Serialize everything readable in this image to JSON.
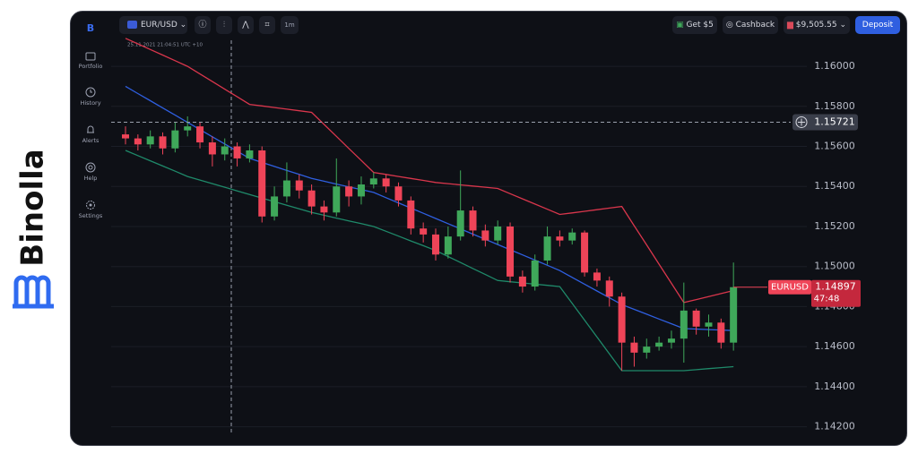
{
  "brand": "Binolla",
  "header": {
    "symbol": "EUR/USD",
    "timeframe": "1m",
    "bonus": "Get $5",
    "cashback": "Cashback",
    "balance": "$9,505.55",
    "deposit": "Deposit"
  },
  "sidebar": [
    "Portfolio",
    "History",
    "Alerts",
    "Help",
    "Settings"
  ],
  "chart_data": {
    "type": "candlestick",
    "symbol": "EURUSD",
    "timestamp": "25.11.2021 21:04:51 UTC +10",
    "countdown": "47:48",
    "open": [
      1.1566,
      1.1564,
      1.1561,
      1.1565,
      1.1559,
      1.1568,
      1.157,
      1.1562,
      1.1556,
      1.156,
      1.1554,
      1.1558,
      1.1525,
      1.1535,
      1.1543,
      1.1538,
      1.153,
      1.1527,
      1.154,
      1.1535,
      1.1541,
      1.1544,
      1.154,
      1.1533,
      1.1519,
      1.1516,
      1.1506,
      1.1515,
      1.1528,
      1.1518,
      1.1513,
      1.152,
      1.1495,
      1.149,
      1.1503,
      1.1515,
      1.1513,
      1.1517,
      1.1497,
      1.1493,
      1.1485,
      1.1462,
      1.1457,
      1.146,
      1.1462,
      1.1464,
      1.1478,
      1.147,
      1.1472,
      1.1462
    ],
    "high": [
      1.157,
      1.1566,
      1.1568,
      1.1567,
      1.1572,
      1.1575,
      1.1572,
      1.1565,
      1.1564,
      1.1562,
      1.1561,
      1.156,
      1.154,
      1.1552,
      1.1546,
      1.1541,
      1.1533,
      1.1554,
      1.1543,
      1.1545,
      1.1547,
      1.1546,
      1.1542,
      1.1535,
      1.1522,
      1.1519,
      1.152,
      1.1548,
      1.153,
      1.1521,
      1.1523,
      1.1522,
      1.1498,
      1.1506,
      1.152,
      1.1518,
      1.1519,
      1.1518,
      1.1499,
      1.1495,
      1.1487,
      1.1465,
      1.1464,
      1.1465,
      1.1468,
      1.1492,
      1.1479,
      1.1476,
      1.1474,
      1.1502
    ],
    "low": [
      1.1561,
      1.1558,
      1.1559,
      1.1556,
      1.1557,
      1.1565,
      1.1559,
      1.155,
      1.1553,
      1.155,
      1.1552,
      1.1522,
      1.1523,
      1.1532,
      1.1534,
      1.1526,
      1.1523,
      1.1525,
      1.153,
      1.1531,
      1.1539,
      1.1537,
      1.153,
      1.1516,
      1.1512,
      1.1503,
      1.1504,
      1.1513,
      1.1515,
      1.151,
      1.1511,
      1.1492,
      1.1487,
      1.1488,
      1.1501,
      1.151,
      1.1511,
      1.1495,
      1.149,
      1.148,
      1.1448,
      1.145,
      1.1454,
      1.1458,
      1.1459,
      1.1452,
      1.1466,
      1.1465,
      1.1459,
      1.1458
    ],
    "close": [
      1.1564,
      1.1561,
      1.1565,
      1.1559,
      1.1568,
      1.157,
      1.1562,
      1.1556,
      1.156,
      1.1554,
      1.1558,
      1.1525,
      1.1535,
      1.1543,
      1.1538,
      1.153,
      1.1527,
      1.154,
      1.1535,
      1.1541,
      1.1544,
      1.154,
      1.1533,
      1.1519,
      1.1516,
      1.1506,
      1.1515,
      1.1528,
      1.1518,
      1.1513,
      1.152,
      1.1495,
      1.149,
      1.1503,
      1.1515,
      1.1513,
      1.1517,
      1.1497,
      1.1493,
      1.1485,
      1.1462,
      1.1457,
      1.146,
      1.1462,
      1.1464,
      1.1478,
      1.147,
      1.1472,
      1.1462,
      1.14897
    ],
    "up_color": "#3fa85a",
    "down_color": "#ef4458",
    "overlays": [
      {
        "color": "#d9364c",
        "values": [
          1.1614,
          1.16112,
          1.16084,
          1.16056,
          1.16028,
          1.16,
          1.15962,
          1.15924,
          1.15886,
          1.15848,
          1.1581,
          1.15802,
          1.15794,
          1.15786,
          1.15778,
          1.1577,
          1.1571,
          1.1565,
          1.1559,
          1.1553,
          1.1547,
          1.1546,
          1.1545,
          1.1544,
          1.1543,
          1.1542,
          1.15414,
          1.15408,
          1.15402,
          1.15396,
          1.1539,
          1.15364,
          1.15338,
          1.15312,
          1.15286,
          1.1526,
          1.15268,
          1.15276,
          1.15284,
          1.15292,
          1.153,
          1.15204,
          1.15108,
          1.15012,
          1.14916,
          1.1482,
          1.14835,
          1.1485,
          1.14865,
          1.1488
        ]
      },
      {
        "color": "#2f5fe0",
        "values": [
          1.159,
          1.15864,
          1.15828,
          1.15792,
          1.15756,
          1.1572,
          1.15684,
          1.15648,
          1.15612,
          1.15576,
          1.1554,
          1.1552,
          1.155,
          1.1548,
          1.1546,
          1.1544,
          1.15426,
          1.15412,
          1.15398,
          1.15384,
          1.1537,
          1.15344,
          1.15318,
          1.15292,
          1.15266,
          1.1524,
          1.15214,
          1.15188,
          1.15162,
          1.15136,
          1.1511,
          1.15084,
          1.15058,
          1.15032,
          1.15006,
          1.1498,
          1.14946,
          1.14912,
          1.14878,
          1.14844,
          1.1481,
          1.14786,
          1.14762,
          1.14738,
          1.14714,
          1.1469,
          1.14688,
          1.14685,
          1.14683,
          1.1468
        ]
      },
      {
        "color": "#1f8a6a",
        "values": [
          1.1558,
          1.15554,
          1.15528,
          1.15502,
          1.15476,
          1.1545,
          1.15432,
          1.15414,
          1.15396,
          1.15378,
          1.1536,
          1.15342,
          1.15324,
          1.15306,
          1.15288,
          1.1527,
          1.15256,
          1.15242,
          1.15228,
          1.15214,
          1.152,
          1.15176,
          1.15152,
          1.15128,
          1.15104,
          1.1508,
          1.1505,
          1.1502,
          1.1499,
          1.1496,
          1.1493,
          1.14924,
          1.14918,
          1.14912,
          1.14906,
          1.149,
          1.14816,
          1.14732,
          1.14648,
          1.14564,
          1.1448,
          1.1448,
          1.1448,
          1.1448,
          1.1448,
          1.1448,
          1.14485,
          1.1449,
          1.14495,
          1.145
        ]
      }
    ],
    "ylim": [
      1.1414,
      1.1613
    ],
    "yticks": [
      {
        "value": 1.142,
        "label": "1.14200"
      },
      {
        "value": 1.144,
        "label": "1.14400"
      },
      {
        "value": 1.146,
        "label": "1.14600"
      },
      {
        "value": 1.148,
        "label": "1.14800"
      },
      {
        "value": 1.15,
        "label": "1.15000"
      },
      {
        "value": 1.152,
        "label": "1.15200"
      },
      {
        "value": 1.154,
        "label": "1.15400"
      },
      {
        "value": 1.156,
        "label": "1.15600"
      },
      {
        "value": 1.158,
        "label": "1.15800"
      },
      {
        "value": 1.16,
        "label": "1.16000"
      }
    ],
    "crosshair_price": 1.15721,
    "grid": true
  }
}
